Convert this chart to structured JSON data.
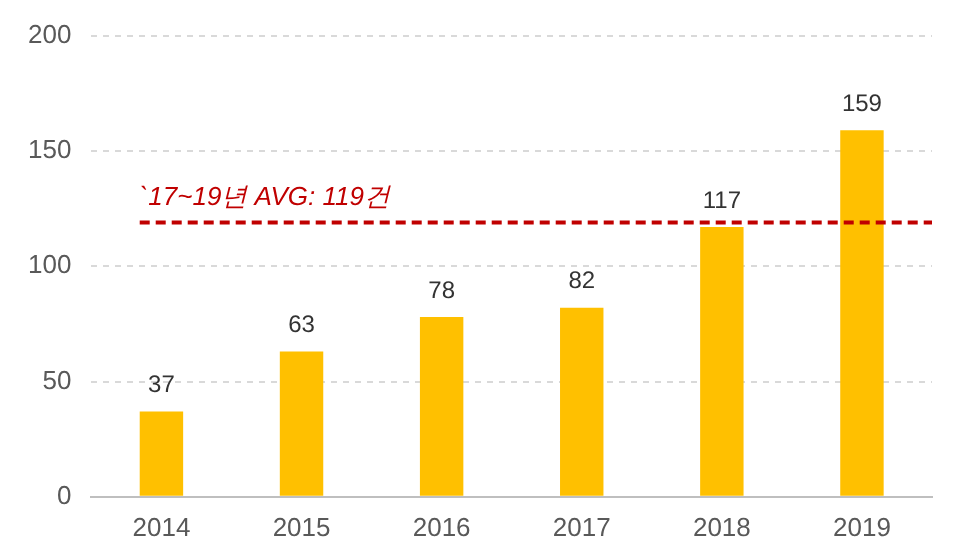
{
  "chart_data": {
    "type": "bar",
    "categories": [
      "2014",
      "2015",
      "2016",
      "2017",
      "2018",
      "2019"
    ],
    "values": [
      37,
      63,
      78,
      82,
      117,
      159
    ],
    "color": "#ffc000",
    "ylim": [
      0,
      200
    ],
    "yticks": [
      0,
      50,
      100,
      150,
      200
    ],
    "grid": "y",
    "data_labels": true,
    "ref_lines": [
      {
        "axis": "y",
        "value": 119,
        "label": "`17~19년 AVG: 119건",
        "color": "#c00000",
        "line_style": "dashed"
      }
    ]
  }
}
